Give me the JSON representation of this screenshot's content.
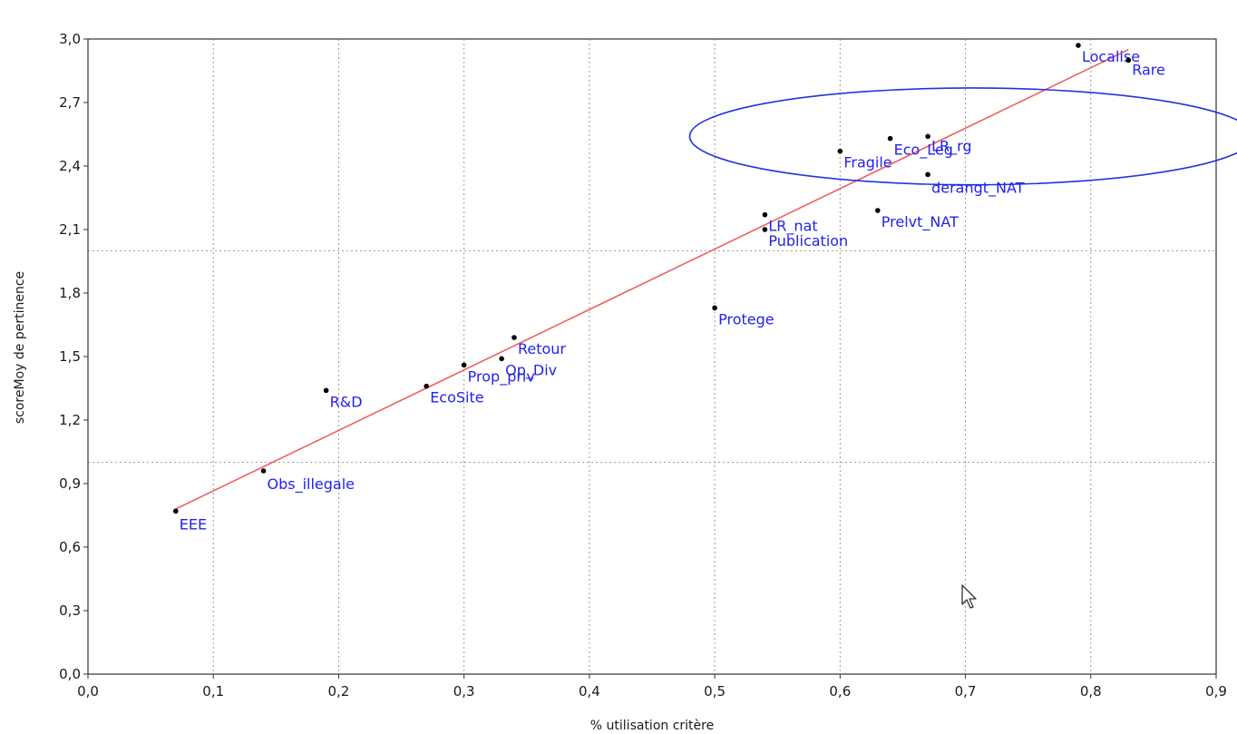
{
  "chart_data": {
    "type": "scatter",
    "xlabel": "% utilisation critère",
    "ylabel": "scoreMoy de pertinence",
    "xlim": [
      0.0,
      0.9
    ],
    "ylim": [
      0.0,
      3.0
    ],
    "x_ticks": [
      "0,0",
      "0,1",
      "0,2",
      "0,3",
      "0,4",
      "0,5",
      "0,6",
      "0,7",
      "0,8",
      "0,9"
    ],
    "y_ticks": [
      "0,0",
      "0,3",
      "0,6",
      "0,9",
      "1,2",
      "1,5",
      "1,8",
      "2,1",
      "2,4",
      "2,7",
      "3,0"
    ],
    "grid": "dotted",
    "reference_lines_y": [
      1.0,
      2.0
    ],
    "points": [
      {
        "label": "EEE",
        "x": 0.07,
        "y": 0.77
      },
      {
        "label": "Obs_illegale",
        "x": 0.14,
        "y": 0.96
      },
      {
        "label": "R&D",
        "x": 0.19,
        "y": 1.34
      },
      {
        "label": "EcoSite",
        "x": 0.27,
        "y": 1.36
      },
      {
        "label": "Prop_priv",
        "x": 0.3,
        "y": 1.46
      },
      {
        "label": "Op_Div",
        "x": 0.33,
        "y": 1.49
      },
      {
        "label": "Retour",
        "x": 0.34,
        "y": 1.59
      },
      {
        "label": "Protege",
        "x": 0.5,
        "y": 1.73
      },
      {
        "label": "LR_nat",
        "x": 0.54,
        "y": 2.17
      },
      {
        "label": "Publication",
        "x": 0.54,
        "y": 2.1
      },
      {
        "label": "Fragile",
        "x": 0.6,
        "y": 2.47
      },
      {
        "label": "Prelvt_NAT",
        "x": 0.63,
        "y": 2.19
      },
      {
        "label": "Eco_Leg",
        "x": 0.64,
        "y": 2.53
      },
      {
        "label": "LR_rg",
        "x": 0.67,
        "y": 2.54
      },
      {
        "label": "derangt_NAT",
        "x": 0.67,
        "y": 2.36
      },
      {
        "label": "Localise",
        "x": 0.79,
        "y": 2.97
      },
      {
        "label": "Rare",
        "x": 0.83,
        "y": 2.9
      }
    ],
    "trendline": {
      "x": [
        0.07,
        0.83
      ],
      "y": [
        0.78,
        2.95
      ],
      "color": "#f06060"
    },
    "highlight_ellipse": {
      "cx": 0.705,
      "cy": 2.54,
      "rx": 0.225,
      "ry": 0.86,
      "color": "#2233dd"
    },
    "point_color": "#000000",
    "label_color": "#2222ee"
  },
  "icons": {
    "cursor": "mouse-pointer-icon"
  }
}
